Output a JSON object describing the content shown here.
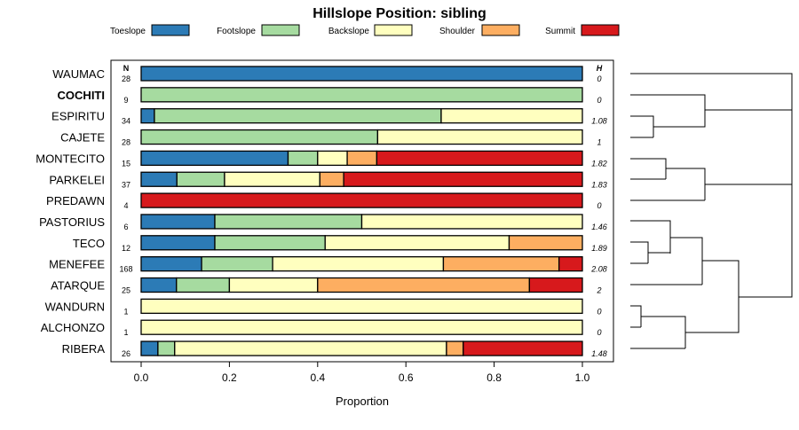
{
  "chart_data": {
    "type": "stacked-bar-horizontal",
    "title": "Hillslope Position: sibling",
    "xlabel": "Proportion",
    "xlim": [
      0,
      1
    ],
    "xticks": [
      "0.0",
      "0.2",
      "0.4",
      "0.6",
      "0.8",
      "1.0"
    ],
    "xtick_values": [
      0,
      0.2,
      0.4,
      0.6,
      0.8,
      1.0
    ],
    "n_header": "N",
    "h_header": "H",
    "categories": [
      "Toeslope",
      "Footslope",
      "Backslope",
      "Shoulder",
      "Summit"
    ],
    "colors": [
      "#2C7BB6",
      "#A6DBA0",
      "#FFFFBF",
      "#FDAE61",
      "#D7191C"
    ],
    "rows": [
      {
        "label": "WAUMAC",
        "bold": false,
        "n": "28",
        "h": "0",
        "values": [
          1.0,
          0,
          0,
          0,
          0
        ]
      },
      {
        "label": "COCHITI",
        "bold": true,
        "n": "9",
        "h": "0",
        "values": [
          0,
          1.0,
          0,
          0,
          0
        ]
      },
      {
        "label": "ESPIRITU",
        "bold": false,
        "n": "34",
        "h": "1.08",
        "values": [
          0.03,
          0.65,
          0.32,
          0,
          0
        ]
      },
      {
        "label": "CAJETE",
        "bold": false,
        "n": "28",
        "h": "1",
        "values": [
          0,
          0.536,
          0.464,
          0,
          0
        ]
      },
      {
        "label": "MONTECITO",
        "bold": false,
        "n": "15",
        "h": "1.82",
        "values": [
          0.333,
          0.067,
          0.067,
          0.067,
          0.466
        ]
      },
      {
        "label": "PARKELEI",
        "bold": false,
        "n": "37",
        "h": "1.83",
        "values": [
          0.081,
          0.108,
          0.216,
          0.054,
          0.541
        ]
      },
      {
        "label": "PREDAWN",
        "bold": false,
        "n": "4",
        "h": "0",
        "values": [
          0,
          0,
          0,
          0,
          1.0
        ]
      },
      {
        "label": "PASTORIUS",
        "bold": false,
        "n": "6",
        "h": "1.46",
        "values": [
          0.167,
          0.333,
          0.5,
          0,
          0
        ]
      },
      {
        "label": "TECO",
        "bold": false,
        "n": "12",
        "h": "1.89",
        "values": [
          0.167,
          0.25,
          0.417,
          0.166,
          0
        ]
      },
      {
        "label": "MENEFEE",
        "bold": false,
        "n": "168",
        "h": "2.08",
        "values": [
          0.137,
          0.161,
          0.387,
          0.262,
          0.053
        ]
      },
      {
        "label": "ATARQUE",
        "bold": false,
        "n": "25",
        "h": "2",
        "values": [
          0.08,
          0.12,
          0.2,
          0.48,
          0.12
        ]
      },
      {
        "label": "WANDURN",
        "bold": false,
        "n": "1",
        "h": "0",
        "values": [
          0,
          0,
          1.0,
          0,
          0
        ]
      },
      {
        "label": "ALCHONZO",
        "bold": false,
        "n": "1",
        "h": "0",
        "values": [
          0,
          0,
          1.0,
          0,
          0
        ]
      },
      {
        "label": "RIBERA",
        "bold": false,
        "n": "26",
        "h": "1.48",
        "values": [
          0.038,
          0.038,
          0.616,
          0.038,
          0.27
        ]
      }
    ]
  }
}
